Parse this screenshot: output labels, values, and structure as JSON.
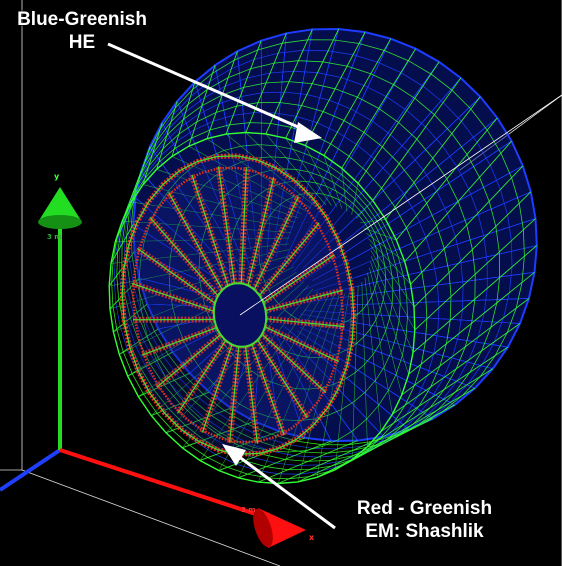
{
  "labels": {
    "he_line1": "Blue-Greenish",
    "he_line2": "HE",
    "em_line1": "Red - Greenish",
    "em_line2": "EM: Shashlik"
  },
  "axes": {
    "x_label": "x",
    "y_label": "y",
    "x_scale": "3 m",
    "y_scale": "3 m"
  },
  "colors": {
    "background": "#000000",
    "he_mesh_blue": "#1e3cff",
    "he_mesh_green": "#33ff33",
    "em_red": "#e03020",
    "em_green": "#44dd33",
    "axis_x": "#ff1010",
    "axis_y": "#22dd22",
    "axis_z": "#1f3fff",
    "annotation": "#ffffff"
  }
}
